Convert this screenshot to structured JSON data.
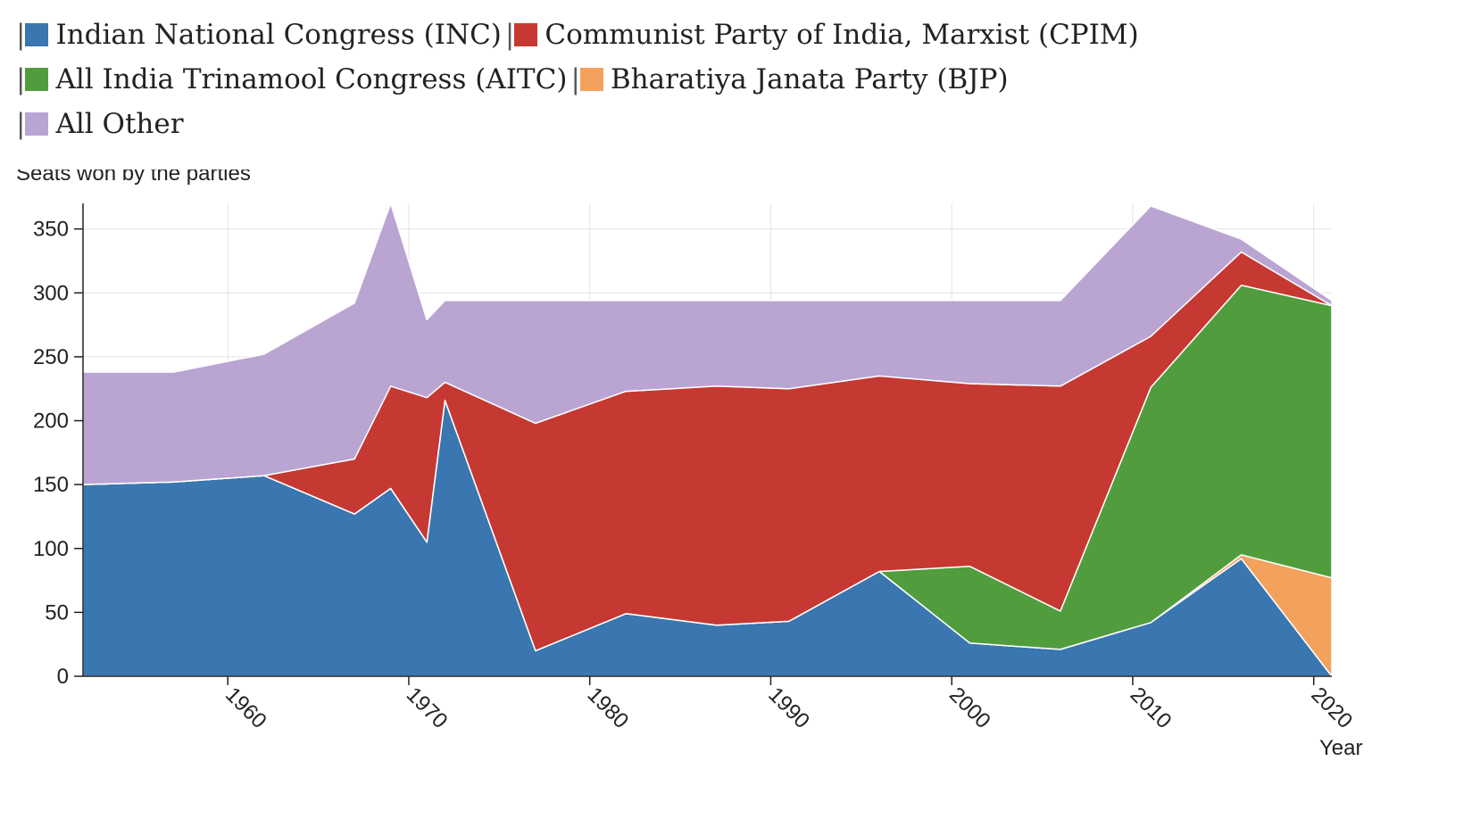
{
  "chart_data": {
    "type": "area",
    "stacked": true,
    "ylabel": "Seats won by the parties",
    "xlabel": "Year",
    "ylim": [
      0,
      370
    ],
    "xlim": [
      1952,
      2021
    ],
    "y_ticks": [
      0,
      50,
      100,
      150,
      200,
      250,
      300,
      350
    ],
    "x_ticks": [
      1960,
      1970,
      1980,
      1990,
      2000,
      2010,
      2020
    ],
    "grid": true,
    "legend_position": "top",
    "x": [
      1952,
      1957,
      1962,
      1967,
      1969,
      1971,
      1972,
      1977,
      1982,
      1987,
      1991,
      1996,
      2001,
      2006,
      2011,
      2016,
      2021
    ],
    "series": [
      {
        "name": "Indian National Congress (INC)",
        "color": "#3a76af",
        "values": [
          150,
          152,
          157,
          127,
          147,
          105,
          216,
          20,
          49,
          40,
          43,
          82,
          26,
          21,
          42,
          92,
          0
        ]
      },
      {
        "name": "Bharatiya Janata Party (BJP)",
        "color": "#f4a15d",
        "values": [
          0,
          0,
          0,
          0,
          0,
          0,
          0,
          0,
          0,
          0,
          0,
          0,
          0,
          0,
          0,
          3,
          77
        ]
      },
      {
        "name": "All India Trinamool Congress (AITC)",
        "color": "#519d3e",
        "values": [
          0,
          0,
          0,
          0,
          0,
          0,
          0,
          0,
          0,
          0,
          0,
          0,
          60,
          30,
          184,
          211,
          213
        ]
      },
      {
        "name": "Communist Party of India, Marxist (CPIM)",
        "color": "#c53932",
        "values": [
          0,
          0,
          0,
          43,
          80,
          113,
          14,
          178,
          174,
          187,
          182,
          153,
          143,
          176,
          40,
          26,
          0
        ]
      },
      {
        "name": "All Other",
        "color": "#baa4d2",
        "values": [
          88,
          86,
          95,
          122,
          143,
          61,
          64,
          96,
          71,
          67,
          69,
          59,
          65,
          67,
          102,
          10,
          4
        ]
      }
    ]
  },
  "legend": [
    [
      {
        "label": "Indian National Congress (INC)",
        "color": "#3a76af"
      },
      {
        "label": "Communist Party of India, Marxist (CPIM)",
        "color": "#c53932"
      }
    ],
    [
      {
        "label": "All India Trinamool Congress (AITC)",
        "color": "#519d3e"
      },
      {
        "label": "Bharatiya Janata Party (BJP)",
        "color": "#f4a15d"
      }
    ],
    [
      {
        "label": "All Other",
        "color": "#baa4d2"
      }
    ]
  ]
}
